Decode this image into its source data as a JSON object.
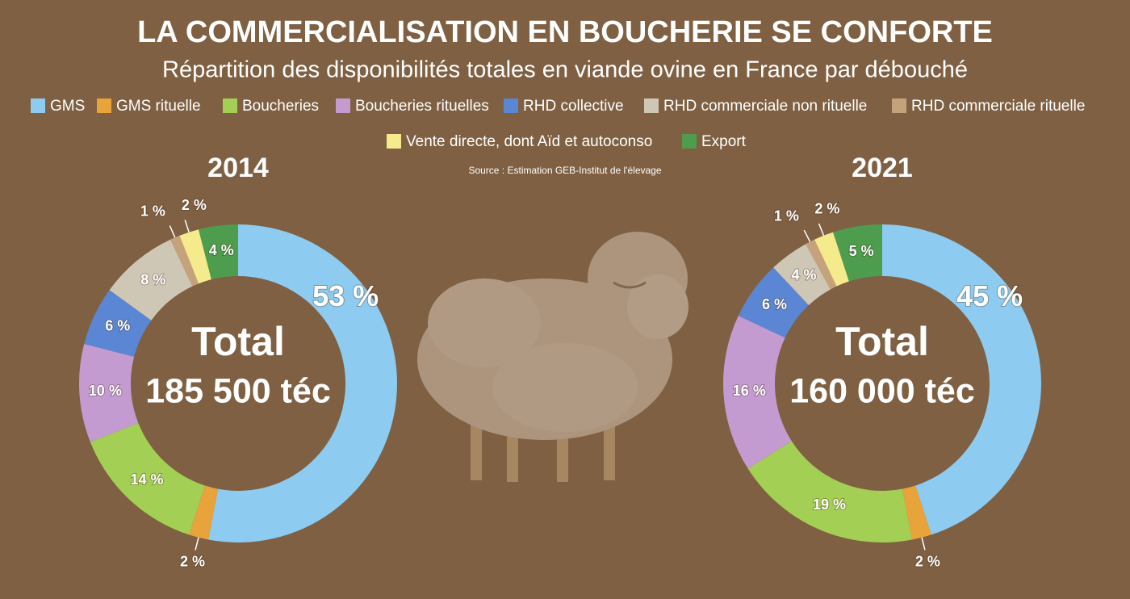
{
  "title": "LA COMMERCIALISATION EN BOUCHERIE SE CONFORTE",
  "subtitle": "Répartition des disponibilités totales en viande ovine en France par débouché",
  "source": "Source : Estimation GEB-Institut de l'élevage",
  "legend": [
    {
      "name": "GMS",
      "color": "#8ecbf0"
    },
    {
      "name": "GMS rituelle",
      "color": "#e8a33a"
    },
    {
      "name": "Boucheries",
      "color": "#a3cf55"
    },
    {
      "name": "Boucheries rituelles",
      "color": "#c39bd0"
    },
    {
      "name": "RHD collective",
      "color": "#5b86d4"
    },
    {
      "name": "RHD commerciale non rituelle",
      "color": "#cfc7b5"
    },
    {
      "name": "RHD commerciale rituelle",
      "color": "#c4a37c"
    },
    {
      "name": "Vente directe, dont Aïd et autoconso",
      "color": "#f6eb8c"
    },
    {
      "name": "Export",
      "color": "#4e9d4e"
    }
  ],
  "chart_data": [
    {
      "type": "donut",
      "title": "2014",
      "center_label": "Total",
      "total": "185 500 téc",
      "values": [
        53,
        2,
        14,
        10,
        6,
        8,
        1,
        2,
        4
      ],
      "value_labels": [
        "53 %",
        "2 %",
        "14 %",
        "10 %",
        "6 %",
        "8 %",
        "1 %",
        "2 %",
        "4 %"
      ]
    },
    {
      "type": "donut",
      "title": "2021",
      "center_label": "Total",
      "total": "160 000 téc",
      "values": [
        45,
        2,
        19,
        16,
        6,
        4,
        1,
        2,
        5
      ],
      "value_labels": [
        "45 %",
        "2 %",
        "19 %",
        "16 %",
        "6 %",
        "4 %",
        "1 %",
        "2 %",
        "5 %"
      ]
    }
  ]
}
